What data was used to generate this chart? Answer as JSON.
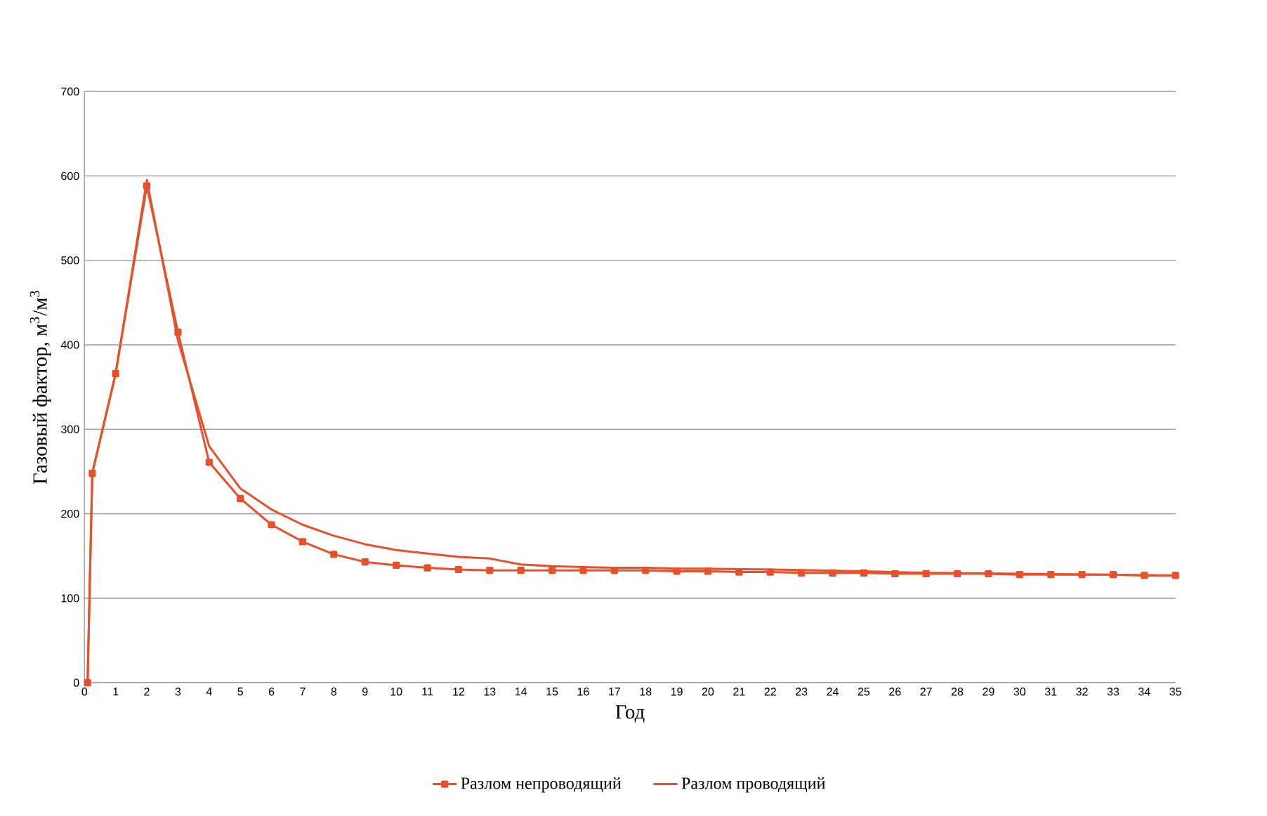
{
  "chart_data": {
    "type": "line",
    "xlabel": "Год",
    "ylabel": "Газовый фактор,  м$^{3}$/м$^{3}$",
    "xlim": [
      0,
      35
    ],
    "ylim": [
      0,
      700
    ],
    "xticks": [
      0,
      1,
      2,
      3,
      4,
      5,
      6,
      7,
      8,
      9,
      10,
      11,
      12,
      13,
      14,
      15,
      16,
      17,
      18,
      19,
      20,
      21,
      22,
      23,
      24,
      25,
      26,
      27,
      28,
      29,
      30,
      31,
      32,
      33,
      34,
      35
    ],
    "yticks": [
      0,
      100,
      200,
      300,
      400,
      500,
      600,
      700
    ],
    "grid": "y",
    "legend": "bottom",
    "series": [
      {
        "name": "Разлом непроводящий",
        "color": "#e8502a",
        "marker": "square",
        "x": [
          0.1,
          0.25,
          1,
          2,
          3,
          4,
          5,
          6,
          7,
          8,
          9,
          10,
          11,
          12,
          13,
          14,
          15,
          16,
          17,
          18,
          19,
          20,
          21,
          22,
          23,
          24,
          25,
          26,
          27,
          28,
          29,
          30,
          31,
          32,
          33,
          34,
          35
        ],
        "values": [
          0,
          248,
          366,
          588,
          415,
          261,
          218,
          187,
          167,
          152,
          143,
          139,
          136,
          134,
          133,
          133,
          133,
          133,
          133,
          133,
          132,
          132,
          131,
          131,
          130,
          130,
          130,
          129,
          129,
          129,
          129,
          128,
          128,
          128,
          128,
          127,
          127
        ]
      },
      {
        "name": "Разлом проводящий",
        "color": "#e8502a",
        "marker": "none",
        "x": [
          0.1,
          0.25,
          1,
          2,
          3,
          4,
          5,
          6,
          7,
          8,
          9,
          10,
          11,
          12,
          13,
          14,
          15,
          16,
          17,
          18,
          19,
          20,
          22,
          25,
          27,
          30,
          35
        ],
        "values": [
          0,
          248,
          366,
          595,
          405,
          280,
          230,
          205,
          187,
          174,
          164,
          157,
          153,
          149,
          147,
          140,
          138,
          137,
          136,
          136,
          135,
          135,
          134,
          132,
          130,
          129,
          127
        ]
      }
    ]
  }
}
